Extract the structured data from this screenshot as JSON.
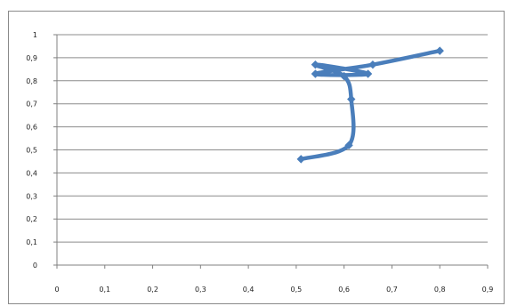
{
  "chart_data": {
    "type": "scatter",
    "title": "",
    "xlabel": "",
    "ylabel": "",
    "xlim": [
      0,
      0.9
    ],
    "ylim": [
      0,
      1
    ],
    "grid": "horizontal",
    "legend": "none",
    "x_tick_labels": [
      "0",
      "0,1",
      "0,2",
      "0,3",
      "0,4",
      "0,5",
      "0,6",
      "0,7",
      "0,8",
      "0,9"
    ],
    "y_tick_labels": [
      "0",
      "0,1",
      "0,2",
      "0,3",
      "0,4",
      "0,5",
      "0,6",
      "0,7",
      "0,8",
      "0,9",
      "1"
    ],
    "series": [
      {
        "color": "#4a7ebb",
        "smooth": true,
        "markers": "diamond",
        "points": [
          {
            "x": 0.51,
            "y": 0.46
          },
          {
            "x": 0.61,
            "y": 0.52
          },
          {
            "x": 0.615,
            "y": 0.72
          },
          {
            "x": 0.6,
            "y": 0.82
          },
          {
            "x": 0.54,
            "y": 0.87
          },
          {
            "x": 0.65,
            "y": 0.83
          },
          {
            "x": 0.54,
            "y": 0.83
          },
          {
            "x": 0.66,
            "y": 0.87
          },
          {
            "x": 0.8,
            "y": 0.93
          }
        ]
      }
    ]
  }
}
